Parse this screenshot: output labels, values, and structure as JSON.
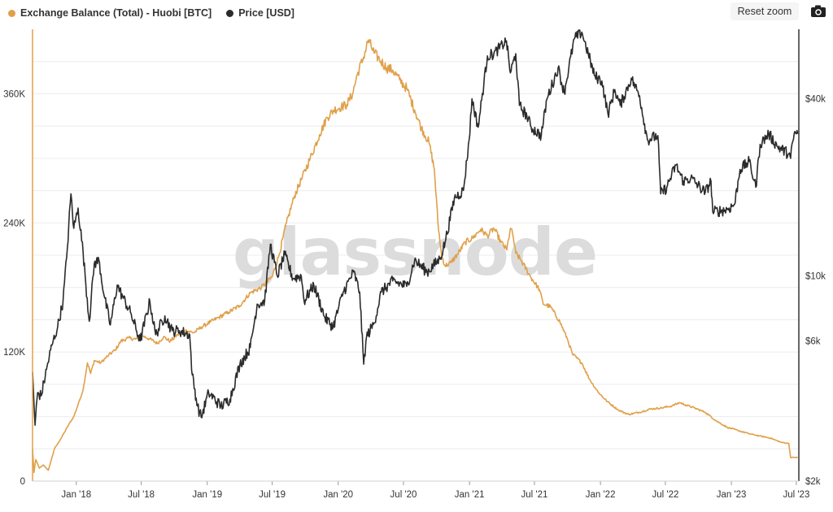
{
  "legend": {
    "balance_label": "Exchange Balance (Total) - Huobi [BTC]",
    "price_label": "Price [USD]"
  },
  "toolbar": {
    "reset_zoom_label": "Reset zoom",
    "camera_icon": "camera-icon"
  },
  "watermark": "glassnode",
  "colors": {
    "balance": "#e0a04a",
    "price": "#2b2b2b",
    "grid": "#ececec",
    "axis": "#333333"
  },
  "chart_data": {
    "type": "line",
    "x": {
      "type": "date",
      "range": [
        "2017-09-01",
        "2023-07-08"
      ],
      "ticks": [
        {
          "date": "2018-01-01",
          "label": "Jan '18"
        },
        {
          "date": "2018-07-01",
          "label": "Jul '18"
        },
        {
          "date": "2019-01-01",
          "label": "Jan '19"
        },
        {
          "date": "2019-07-01",
          "label": "Jul '19"
        },
        {
          "date": "2020-01-01",
          "label": "Jan '20"
        },
        {
          "date": "2020-07-01",
          "label": "Jul '20"
        },
        {
          "date": "2021-01-01",
          "label": "Jan '21"
        },
        {
          "date": "2021-07-01",
          "label": "Jul '21"
        },
        {
          "date": "2022-01-01",
          "label": "Jan '22"
        },
        {
          "date": "2022-07-01",
          "label": "Jul '22"
        },
        {
          "date": "2023-01-01",
          "label": "Jan '23"
        },
        {
          "date": "2023-07-01",
          "label": "Jul '23"
        }
      ]
    },
    "y_left": {
      "scale": "linear",
      "range": [
        0,
        420000
      ],
      "ticks": [
        {
          "value": 0,
          "label": "0"
        },
        {
          "value": 120000,
          "label": "120K"
        },
        {
          "value": 240000,
          "label": "240K"
        },
        {
          "value": 360000,
          "label": "360K"
        }
      ]
    },
    "y_right": {
      "scale": "log",
      "range": [
        2000,
        69000
      ],
      "ticks": [
        {
          "value": 2000,
          "label": "$2k"
        },
        {
          "value": 6000,
          "label": "$6k"
        },
        {
          "value": 10000,
          "label": "$10k"
        },
        {
          "value": 40000,
          "label": "$40k"
        }
      ]
    },
    "grid": true,
    "legend_position": "top-left",
    "series": [
      {
        "name": "Exchange Balance (Total) - Huobi [BTC]",
        "axis": "left",
        "points": [
          [
            "2017-09-01",
            30000
          ],
          [
            "2017-09-05",
            8000
          ],
          [
            "2017-09-10",
            20000
          ],
          [
            "2017-09-20",
            12000
          ],
          [
            "2017-10-01",
            15000
          ],
          [
            "2017-10-15",
            10000
          ],
          [
            "2017-11-01",
            30000
          ],
          [
            "2017-11-20",
            40000
          ],
          [
            "2017-12-10",
            52000
          ],
          [
            "2017-12-25",
            60000
          ],
          [
            "2018-01-10",
            75000
          ],
          [
            "2018-01-20",
            85000
          ],
          [
            "2018-02-01",
            110000
          ],
          [
            "2018-02-10",
            100000
          ],
          [
            "2018-02-20",
            112000
          ],
          [
            "2018-03-10",
            110000
          ],
          [
            "2018-04-01",
            117000
          ],
          [
            "2018-04-20",
            122000
          ],
          [
            "2018-05-05",
            130000
          ],
          [
            "2018-05-25",
            133000
          ],
          [
            "2018-06-15",
            132000
          ],
          [
            "2018-07-05",
            135000
          ],
          [
            "2018-07-25",
            132000
          ],
          [
            "2018-08-15",
            128000
          ],
          [
            "2018-09-01",
            134000
          ],
          [
            "2018-09-20",
            130000
          ],
          [
            "2018-10-10",
            136000
          ],
          [
            "2018-11-01",
            140000
          ],
          [
            "2018-11-25",
            138000
          ],
          [
            "2018-12-15",
            143000
          ],
          [
            "2019-01-10",
            148000
          ],
          [
            "2019-02-01",
            152000
          ],
          [
            "2019-03-01",
            157000
          ],
          [
            "2019-04-01",
            163000
          ],
          [
            "2019-05-01",
            175000
          ],
          [
            "2019-06-01",
            180000
          ],
          [
            "2019-07-01",
            190000
          ],
          [
            "2019-07-20",
            210000
          ],
          [
            "2019-08-10",
            240000
          ],
          [
            "2019-09-01",
            265000
          ],
          [
            "2019-09-20",
            280000
          ],
          [
            "2019-10-15",
            300000
          ],
          [
            "2019-11-10",
            322000
          ],
          [
            "2019-12-01",
            338000
          ],
          [
            "2019-12-20",
            345000
          ],
          [
            "2020-01-10",
            348000
          ],
          [
            "2020-01-25",
            350000
          ],
          [
            "2020-02-10",
            360000
          ],
          [
            "2020-02-25",
            380000
          ],
          [
            "2020-03-10",
            392000
          ],
          [
            "2020-03-25",
            410000
          ],
          [
            "2020-04-10",
            398000
          ],
          [
            "2020-04-25",
            392000
          ],
          [
            "2020-05-15",
            384000
          ],
          [
            "2020-06-01",
            382000
          ],
          [
            "2020-06-20",
            373000
          ],
          [
            "2020-07-10",
            365000
          ],
          [
            "2020-08-01",
            345000
          ],
          [
            "2020-08-20",
            328000
          ],
          [
            "2020-09-10",
            315000
          ],
          [
            "2020-09-25",
            290000
          ],
          [
            "2020-10-05",
            240000
          ],
          [
            "2020-10-15",
            210000
          ],
          [
            "2020-10-25",
            200000
          ],
          [
            "2020-11-10",
            203000
          ],
          [
            "2020-12-01",
            212000
          ],
          [
            "2020-12-20",
            222000
          ],
          [
            "2021-01-10",
            226000
          ],
          [
            "2021-02-01",
            234000
          ],
          [
            "2021-02-20",
            228000
          ],
          [
            "2021-03-10",
            235000
          ],
          [
            "2021-03-30",
            222000
          ],
          [
            "2021-04-15",
            215000
          ],
          [
            "2021-04-25",
            235000
          ],
          [
            "2021-05-01",
            230000
          ],
          [
            "2021-05-10",
            212000
          ],
          [
            "2021-05-25",
            205000
          ],
          [
            "2021-06-20",
            190000
          ],
          [
            "2021-07-15",
            178000
          ],
          [
            "2021-07-25",
            165000
          ],
          [
            "2021-08-15",
            162000
          ],
          [
            "2021-09-10",
            148000
          ],
          [
            "2021-10-01",
            132000
          ],
          [
            "2021-10-15",
            118000
          ],
          [
            "2021-11-10",
            110000
          ],
          [
            "2021-12-01",
            95000
          ],
          [
            "2021-12-25",
            83000
          ],
          [
            "2022-01-20",
            74000
          ],
          [
            "2022-02-20",
            66000
          ],
          [
            "2022-03-20",
            62000
          ],
          [
            "2022-04-20",
            64000
          ],
          [
            "2022-05-20",
            67000
          ],
          [
            "2022-06-20",
            68000
          ],
          [
            "2022-07-20",
            70000
          ],
          [
            "2022-08-10",
            73000
          ],
          [
            "2022-08-25",
            71000
          ],
          [
            "2022-09-20",
            68000
          ],
          [
            "2022-10-20",
            64000
          ],
          [
            "2022-11-20",
            56000
          ],
          [
            "2022-12-20",
            50000
          ],
          [
            "2023-01-20",
            47000
          ],
          [
            "2023-02-20",
            44000
          ],
          [
            "2023-03-20",
            42000
          ],
          [
            "2023-04-20",
            40000
          ],
          [
            "2023-05-20",
            36000
          ],
          [
            "2023-06-10",
            35000
          ],
          [
            "2023-06-15",
            22000
          ],
          [
            "2023-07-05",
            22000
          ]
        ]
      },
      {
        "name": "Price [USD]",
        "axis": "right",
        "points": [
          [
            "2017-09-01",
            4700
          ],
          [
            "2017-09-08",
            3100
          ],
          [
            "2017-09-15",
            4000
          ],
          [
            "2017-09-25",
            3900
          ],
          [
            "2017-10-10",
            4800
          ],
          [
            "2017-10-25",
            5800
          ],
          [
            "2017-11-10",
            6700
          ],
          [
            "2017-11-25",
            8200
          ],
          [
            "2017-12-05",
            11500
          ],
          [
            "2017-12-17",
            19000
          ],
          [
            "2017-12-25",
            14500
          ],
          [
            "2018-01-06",
            17000
          ],
          [
            "2018-01-20",
            12000
          ],
          [
            "2018-02-06",
            7000
          ],
          [
            "2018-02-20",
            11000
          ],
          [
            "2018-03-05",
            11300
          ],
          [
            "2018-03-20",
            8500
          ],
          [
            "2018-04-06",
            6800
          ],
          [
            "2018-04-25",
            9300
          ],
          [
            "2018-05-10",
            8500
          ],
          [
            "2018-06-01",
            7500
          ],
          [
            "2018-06-28",
            6000
          ],
          [
            "2018-07-25",
            8200
          ],
          [
            "2018-08-10",
            6300
          ],
          [
            "2018-09-05",
            7300
          ],
          [
            "2018-09-25",
            6500
          ],
          [
            "2018-10-15",
            6500
          ],
          [
            "2018-11-13",
            6300
          ],
          [
            "2018-11-20",
            4600
          ],
          [
            "2018-12-05",
            3600
          ],
          [
            "2018-12-15",
            3300
          ],
          [
            "2019-01-05",
            4000
          ],
          [
            "2019-02-08",
            3600
          ],
          [
            "2019-03-05",
            3800
          ],
          [
            "2019-04-02",
            5000
          ],
          [
            "2019-05-01",
            5700
          ],
          [
            "2019-05-20",
            8000
          ],
          [
            "2019-06-10",
            8200
          ],
          [
            "2019-06-26",
            12800
          ],
          [
            "2019-07-15",
            10000
          ],
          [
            "2019-08-05",
            11800
          ],
          [
            "2019-08-28",
            9800
          ],
          [
            "2019-09-20",
            10000
          ],
          [
            "2019-09-28",
            8200
          ],
          [
            "2019-10-25",
            9300
          ],
          [
            "2019-11-25",
            7200
          ],
          [
            "2019-12-18",
            6700
          ],
          [
            "2020-01-15",
            8800
          ],
          [
            "2020-02-13",
            10300
          ],
          [
            "2020-03-01",
            8800
          ],
          [
            "2020-03-12",
            5000
          ],
          [
            "2020-03-20",
            6200
          ],
          [
            "2020-04-10",
            6900
          ],
          [
            "2020-04-30",
            8800
          ],
          [
            "2020-06-01",
            9600
          ],
          [
            "2020-07-10",
            9200
          ],
          [
            "2020-08-01",
            11300
          ],
          [
            "2020-09-05",
            10300
          ],
          [
            "2020-10-10",
            11400
          ],
          [
            "2020-10-25",
            13000
          ],
          [
            "2020-11-20",
            18400
          ],
          [
            "2020-12-15",
            19500
          ],
          [
            "2020-12-31",
            29000
          ],
          [
            "2021-01-08",
            40000
          ],
          [
            "2021-01-25",
            32000
          ],
          [
            "2021-02-20",
            56000
          ],
          [
            "2021-03-10",
            57000
          ],
          [
            "2021-04-14",
            63000
          ],
          [
            "2021-04-25",
            49000
          ],
          [
            "2021-05-10",
            57000
          ],
          [
            "2021-05-20",
            38000
          ],
          [
            "2021-06-10",
            35000
          ],
          [
            "2021-06-22",
            32000
          ],
          [
            "2021-07-20",
            30000
          ],
          [
            "2021-08-05",
            40000
          ],
          [
            "2021-09-05",
            51000
          ],
          [
            "2021-09-22",
            42000
          ],
          [
            "2021-10-20",
            64000
          ],
          [
            "2021-11-10",
            67500
          ],
          [
            "2021-11-28",
            57000
          ],
          [
            "2021-12-15",
            48000
          ],
          [
            "2022-01-05",
            46000
          ],
          [
            "2022-01-22",
            35500
          ],
          [
            "2022-02-10",
            43000
          ],
          [
            "2022-02-25",
            38000
          ],
          [
            "2022-03-28",
            47000
          ],
          [
            "2022-04-20",
            41000
          ],
          [
            "2022-05-12",
            29000
          ],
          [
            "2022-06-10",
            30000
          ],
          [
            "2022-06-18",
            19000
          ],
          [
            "2022-07-05",
            20000
          ],
          [
            "2022-07-30",
            23800
          ],
          [
            "2022-08-20",
            21000
          ],
          [
            "2022-09-10",
            21500
          ],
          [
            "2022-10-20",
            19200
          ],
          [
            "2022-11-05",
            21000
          ],
          [
            "2022-11-10",
            16500
          ],
          [
            "2022-12-20",
            16800
          ],
          [
            "2023-01-10",
            17500
          ],
          [
            "2023-01-25",
            23000
          ],
          [
            "2023-02-20",
            24500
          ],
          [
            "2023-03-10",
            20000
          ],
          [
            "2023-03-22",
            28000
          ],
          [
            "2023-04-15",
            30400
          ],
          [
            "2023-05-10",
            27500
          ],
          [
            "2023-06-10",
            26000
          ],
          [
            "2023-06-15",
            25100
          ],
          [
            "2023-06-25",
            30500
          ],
          [
            "2023-07-05",
            30400
          ]
        ]
      }
    ]
  }
}
